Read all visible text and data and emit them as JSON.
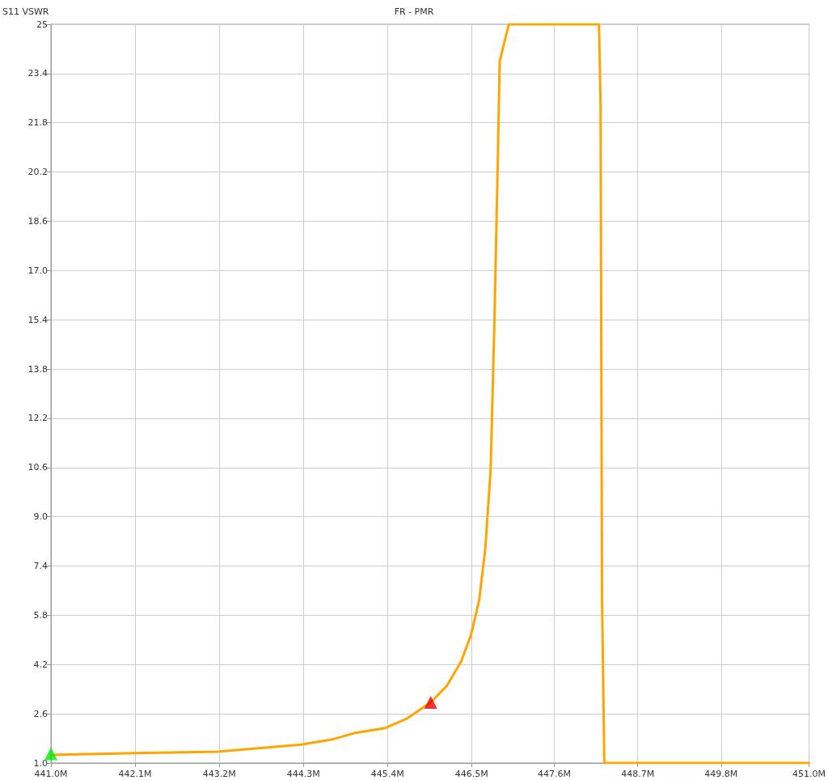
{
  "chart_data": {
    "type": "line",
    "title": "FR - PMR",
    "ylabel": "S11 VSWR",
    "xlim": [
      441,
      451
    ],
    "ylim": [
      1,
      25
    ],
    "xticks": [
      {
        "value": 441,
        "label": "441.0M"
      },
      {
        "value": 442.11,
        "label": "442.1M"
      },
      {
        "value": 443.22,
        "label": "443.2M"
      },
      {
        "value": 444.33,
        "label": "444.3M"
      },
      {
        "value": 445.44,
        "label": "445.4M"
      },
      {
        "value": 446.55,
        "label": "446.5M"
      },
      {
        "value": 447.64,
        "label": "447.6M"
      },
      {
        "value": 448.74,
        "label": "448.7M"
      },
      {
        "value": 449.84,
        "label": "449.8M"
      },
      {
        "value": 451,
        "label": "451.0M"
      }
    ],
    "yticks": [
      {
        "value": 1,
        "label": "1.0"
      },
      2.6,
      4.2,
      5.8,
      7.4,
      {
        "value": 9,
        "label": "9.0"
      },
      10.6,
      12.2,
      13.8,
      15.4,
      {
        "value": 17,
        "label": "17.0"
      },
      18.6,
      20.2,
      21.8,
      23.4,
      25
    ],
    "grid": true,
    "marker": "none",
    "line_style": "solid",
    "series": [
      {
        "color": "#ffa500",
        "x": [
          441,
          442.1,
          443.2,
          444.3,
          444.7,
          445,
          445.4,
          445.7,
          446.01,
          446.22,
          446.41,
          446.54,
          446.65,
          446.73,
          446.8,
          446.85,
          446.89,
          446.92,
          447.04,
          448.23,
          448.25,
          448.27,
          448.3,
          451
        ],
        "values": [
          1.26,
          1.32,
          1.37,
          1.6,
          1.76,
          1.97,
          2.13,
          2.45,
          2.97,
          3.5,
          4.29,
          5.15,
          6.3,
          7.97,
          10.5,
          15.3,
          20,
          23.8,
          25,
          25,
          22.4,
          6.3,
          1,
          1
        ]
      },
      {
        "type": "scatter",
        "marker": "triangle",
        "color": "#00ee00",
        "x": [
          441
        ],
        "values": [
          1.3
        ]
      },
      {
        "type": "scatter",
        "marker": "triangle",
        "color": "#ee0000",
        "x": [
          446.01
        ],
        "values": [
          2.97
        ]
      }
    ]
  }
}
